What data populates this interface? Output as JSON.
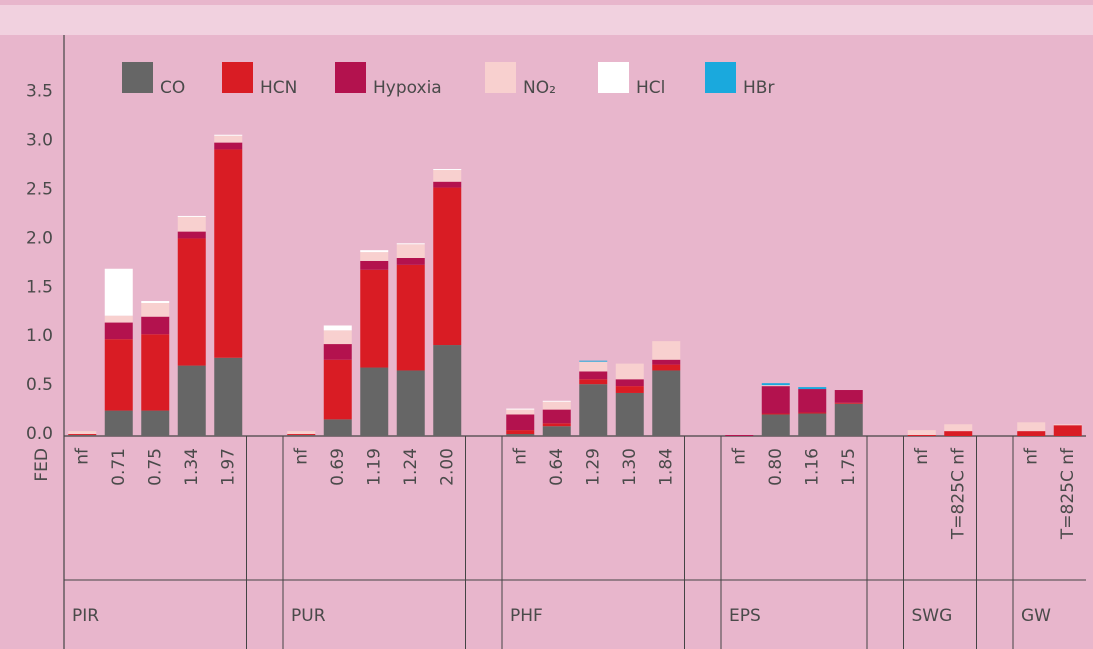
{
  "chart_data": {
    "type": "stacked-bar",
    "xlabel": "FED",
    "categories": [
      "nf",
      "0.71",
      "0.75",
      "1.34",
      "1.97",
      "nf",
      "0.69",
      "1.19",
      "1.24",
      "2.00",
      "nf",
      "0.64",
      "1.29",
      "1.30",
      "1.84",
      "nf",
      "0.80",
      "1.16",
      "1.75",
      "nf",
      "T=825C nf",
      "nf",
      "T=825C nf"
    ],
    "groups": [
      {
        "label": "PIR",
        "count": 5
      },
      {
        "label": "PUR",
        "count": 5
      },
      {
        "label": "PHF",
        "count": 5
      },
      {
        "label": "EPS",
        "count": 4
      },
      {
        "label": "SWG",
        "count": 2
      },
      {
        "label": "GW",
        "count": 2
      }
    ],
    "series": [
      {
        "name": "CO",
        "color": "#666666",
        "values": [
          0.01,
          0.26,
          0.26,
          0.72,
          0.8,
          0.01,
          0.17,
          0.7,
          0.67,
          0.93,
          0.02,
          0.1,
          0.53,
          0.44,
          0.67,
          0,
          0.22,
          0.23,
          0.33,
          0,
          0,
          0,
          0
        ]
      },
      {
        "name": "HCN",
        "color": "#d91c24",
        "values": [
          0.01,
          0.73,
          0.78,
          1.3,
          2.13,
          0.01,
          0.61,
          1.0,
          1.08,
          1.61,
          0.04,
          0.03,
          0.05,
          0.07,
          0.06,
          0,
          0.01,
          0.01,
          0.01,
          0.01,
          0.05,
          0.05,
          0.11
        ]
      },
      {
        "name": "Hypoxia",
        "color": "#b3124e",
        "values": [
          0,
          0.17,
          0.18,
          0.07,
          0.07,
          0,
          0.16,
          0.09,
          0.07,
          0.06,
          0.16,
          0.14,
          0.08,
          0.07,
          0.05,
          0.01,
          0.28,
          0.24,
          0.13,
          0,
          0,
          0,
          0
        ]
      },
      {
        "name": "NO₂",
        "color": "#f8d0cf",
        "values": [
          0.03,
          0.07,
          0.14,
          0.15,
          0.07,
          0.03,
          0.14,
          0.09,
          0.14,
          0.12,
          0.05,
          0.08,
          0.1,
          0.16,
          0.19,
          0,
          0.01,
          0,
          0,
          0.05,
          0.07,
          0.09,
          0.01
        ]
      },
      {
        "name": "HCl",
        "color": "#ffffff",
        "values": [
          0,
          0.48,
          0.02,
          0.01,
          0.01,
          0,
          0.05,
          0.02,
          0.01,
          0.01,
          0.01,
          0.01,
          0,
          0,
          0,
          0,
          0,
          0,
          0,
          0,
          0,
          0,
          0
        ]
      },
      {
        "name": "HBr",
        "color": "#1aa9dd",
        "values": [
          0,
          0,
          0,
          0,
          0,
          0,
          0,
          0,
          0,
          0,
          0,
          0,
          0.01,
          0,
          0,
          0,
          0.02,
          0.02,
          0,
          0,
          0,
          0,
          0
        ]
      }
    ],
    "ylim": [
      0,
      4.1
    ],
    "yticks": [
      {
        "value": 0,
        "label": "0.0"
      },
      0.5,
      {
        "value": 1,
        "label": "1.0"
      },
      1.5,
      {
        "value": 2,
        "label": "2.0"
      },
      2.5,
      {
        "value": 3,
        "label": "3.0"
      },
      3.5
    ]
  }
}
